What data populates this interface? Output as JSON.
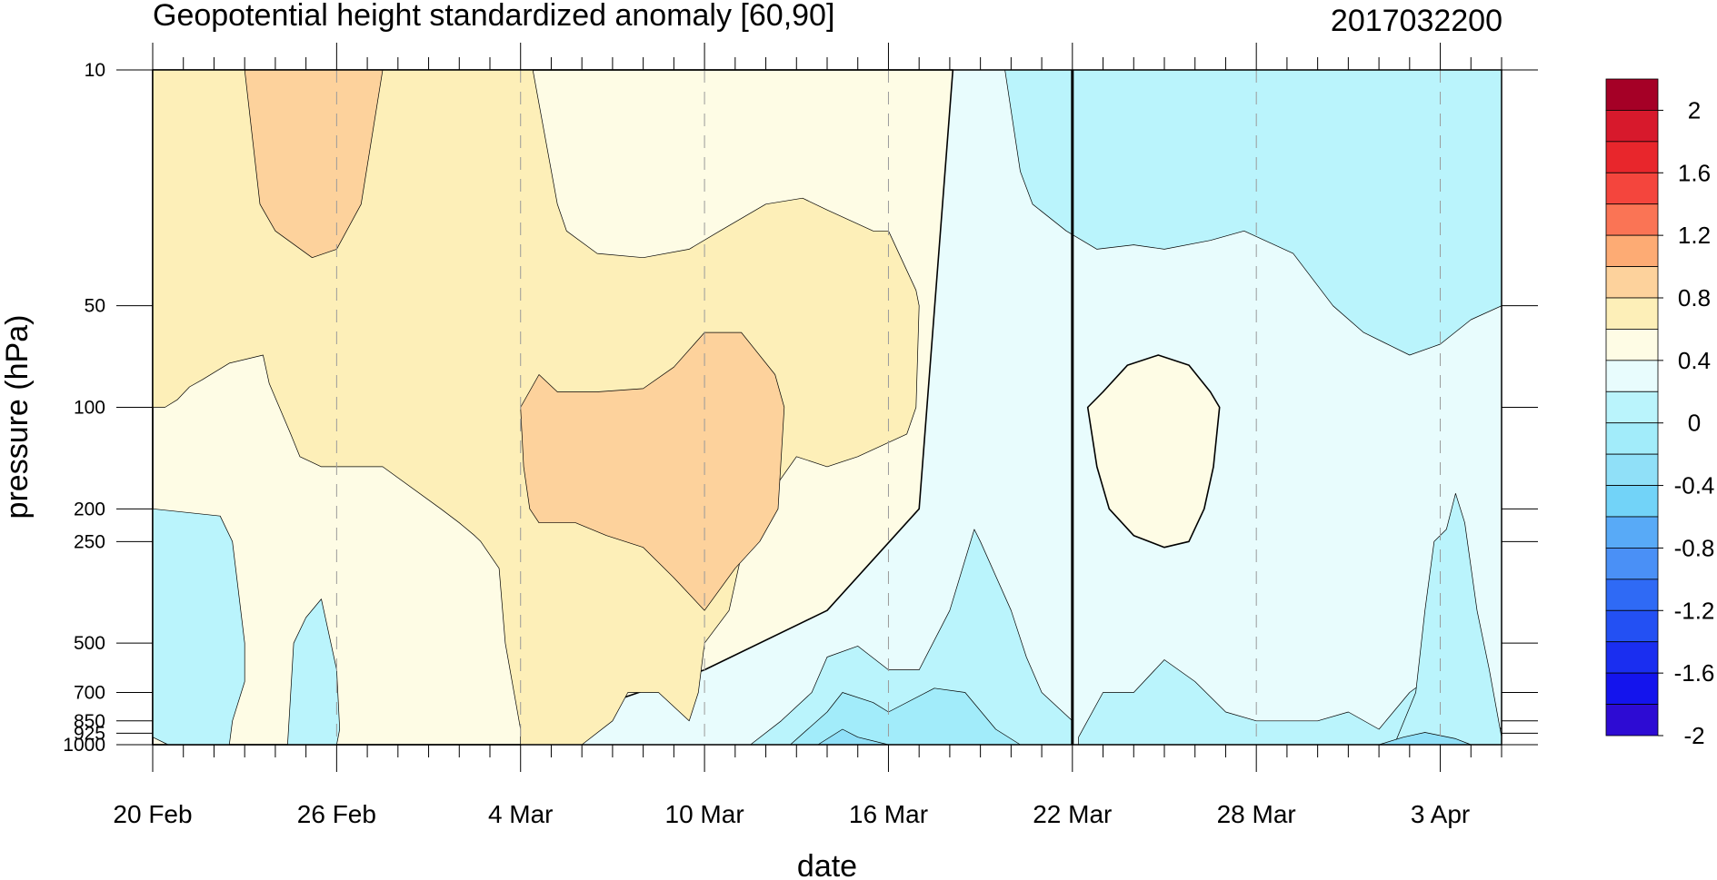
{
  "chart_data": {
    "type": "heatmap",
    "title": "Geopotential height standardized anomaly [60,90]",
    "date_label": "2017032200",
    "xlabel": "date",
    "ylabel": "pressure (hPa)",
    "x_start": "20 Feb",
    "x_end": "4 Apr",
    "x_range_days": [
      0,
      44
    ],
    "x_ticks": [
      {
        "day": 0,
        "label": "20 Feb"
      },
      {
        "day": 6,
        "label": "26 Feb"
      },
      {
        "day": 12,
        "label": "4 Mar"
      },
      {
        "day": 18,
        "label": "10 Mar"
      },
      {
        "day": 24,
        "label": "16 Mar"
      },
      {
        "day": 30,
        "label": "22 Mar"
      },
      {
        "day": 36,
        "label": "28 Mar"
      },
      {
        "day": 42,
        "label": "3 Apr"
      }
    ],
    "y_scale": "log",
    "y_reversed": true,
    "ylim": [
      10,
      1000
    ],
    "y_ticks": [
      {
        "p": 10,
        "label": "10"
      },
      {
        "p": 50,
        "label": "50"
      },
      {
        "p": 100,
        "label": "100"
      },
      {
        "p": 200,
        "label": "200"
      },
      {
        "p": 250,
        "label": "250"
      },
      {
        "p": 500,
        "label": "500"
      },
      {
        "p": 700,
        "label": "700"
      },
      {
        "p": 850,
        "label": "850"
      },
      {
        "p": 925,
        "label": "925"
      },
      {
        "p": 1000,
        "label": "1000"
      }
    ],
    "current_date_marker_day": 30,
    "colorbar": {
      "labels": [
        "2",
        "1.6",
        "1.2",
        "0.8",
        "0.4",
        "0",
        "-0.4",
        "-0.8",
        "-1.2",
        "-1.6",
        "-2"
      ],
      "colors": [
        "#a50026",
        "#d7192c",
        "#e8262c",
        "#f4453d",
        "#fa7455",
        "#fdab74",
        "#fdd29c",
        "#fdefb8",
        "#fefce5",
        "#e8fcfd",
        "#baf4fc",
        "#a2ecfa",
        "#90e0f8",
        "#72d3f8",
        "#58aaf7",
        "#4a90f6",
        "#2f6af5",
        "#2350f3",
        "#1a2ef0",
        "#1414ed",
        "#2d0bd3"
      ]
    },
    "contour_regions": [
      {
        "level": 0.0,
        "color": "#fefce5",
        "points": [
          [
            0,
            10
          ],
          [
            26.1,
            10
          ],
          [
            25.0,
            200
          ],
          [
            22.0,
            400
          ],
          [
            18.0,
            600
          ],
          [
            14.0,
            800
          ],
          [
            12.0,
            1000
          ],
          [
            0,
            1000
          ]
        ]
      },
      {
        "level": 0.2,
        "color": "#fdefb8",
        "points": [
          [
            0,
            10
          ],
          [
            12.4,
            10
          ],
          [
            13.2,
            25
          ],
          [
            13.5,
            30
          ],
          [
            14.5,
            35
          ],
          [
            16.0,
            36
          ],
          [
            17.5,
            34
          ],
          [
            18.5,
            30
          ],
          [
            20.0,
            25
          ],
          [
            21.2,
            24
          ],
          [
            22.0,
            26
          ],
          [
            23.5,
            30
          ],
          [
            24.0,
            30
          ],
          [
            24.9,
            45
          ],
          [
            25.0,
            50
          ],
          [
            24.9,
            100
          ],
          [
            24.6,
            120
          ],
          [
            23.0,
            140
          ],
          [
            22.0,
            150
          ],
          [
            21.0,
            140
          ],
          [
            19.8,
            200
          ],
          [
            19.3,
            250
          ],
          [
            18.8,
            400
          ],
          [
            18.0,
            500
          ],
          [
            17.8,
            700
          ],
          [
            17.5,
            850
          ],
          [
            16.5,
            700
          ],
          [
            15.5,
            700
          ],
          [
            15.0,
            850
          ],
          [
            14.0,
            1000
          ],
          [
            12.0,
            1000
          ],
          [
            12.0,
            900
          ],
          [
            11.5,
            500
          ],
          [
            11.3,
            300
          ],
          [
            10.7,
            250
          ],
          [
            10.5,
            240
          ],
          [
            10.0,
            220
          ],
          [
            9.4,
            200
          ],
          [
            7.5,
            150
          ],
          [
            5.5,
            150
          ],
          [
            4.8,
            140
          ],
          [
            4.5,
            120
          ],
          [
            3.8,
            85
          ],
          [
            3.6,
            70
          ],
          [
            2.5,
            74
          ],
          [
            1.6,
            83
          ],
          [
            1.2,
            87
          ],
          [
            0.8,
            95
          ],
          [
            0.4,
            100
          ],
          [
            0,
            100
          ]
        ]
      },
      {
        "level": 0.4,
        "color": "#fdd29c",
        "points": [
          [
            3.0,
            10
          ],
          [
            7.5,
            10
          ],
          [
            6.8,
            25
          ],
          [
            6.0,
            34
          ],
          [
            5.2,
            36
          ],
          [
            4.0,
            30
          ],
          [
            3.5,
            25
          ]
        ]
      },
      {
        "level": 0.6,
        "color": "#fdd29c",
        "points": [
          [
            12.0,
            100
          ],
          [
            12.6,
            80
          ],
          [
            13.2,
            90
          ],
          [
            14.5,
            90
          ],
          [
            16.0,
            88
          ],
          [
            17.0,
            76
          ],
          [
            18.0,
            60
          ],
          [
            19.2,
            60
          ],
          [
            20.3,
            80
          ],
          [
            20.6,
            100
          ],
          [
            20.4,
            200
          ],
          [
            19.8,
            250
          ],
          [
            19.0,
            300
          ],
          [
            18.0,
            400
          ],
          [
            17.0,
            320
          ],
          [
            16.0,
            260
          ],
          [
            14.8,
            240
          ],
          [
            13.8,
            220
          ],
          [
            12.6,
            220
          ],
          [
            12.3,
            200
          ],
          [
            12.1,
            150
          ]
        ]
      },
      {
        "level": -0.2,
        "color": "#baf4fc",
        "points": [
          [
            27.8,
            10
          ],
          [
            44,
            10
          ],
          [
            44,
            50
          ],
          [
            43.0,
            55
          ],
          [
            42.0,
            65
          ],
          [
            41.0,
            70
          ],
          [
            39.5,
            60
          ],
          [
            38.5,
            50
          ],
          [
            37.2,
            35
          ],
          [
            35.6,
            30
          ],
          [
            34.5,
            32
          ],
          [
            33.0,
            34
          ],
          [
            32.0,
            33
          ],
          [
            30.8,
            34
          ],
          [
            29.8,
            30
          ],
          [
            28.7,
            25
          ],
          [
            28.3,
            20
          ]
        ]
      },
      {
        "level": -0.4,
        "color": "#baf4fc",
        "points": [
          [
            0,
            200
          ],
          [
            2.2,
            210
          ],
          [
            2.6,
            250
          ],
          [
            3.0,
            500
          ],
          [
            3.0,
            650
          ],
          [
            2.6,
            850
          ],
          [
            2.5,
            1000
          ],
          [
            0.5,
            1000
          ],
          [
            0,
            950
          ]
        ]
      },
      {
        "level": -0.6,
        "color": "#baf4fc",
        "points": [
          [
            4.4,
            1000
          ],
          [
            4.6,
            500
          ],
          [
            5.0,
            420
          ],
          [
            5.5,
            370
          ],
          [
            6.0,
            600
          ],
          [
            6.1,
            900
          ],
          [
            6.0,
            1000
          ]
        ]
      },
      {
        "level": -0.8,
        "color": "#baf4fc",
        "points": [
          [
            19.5,
            1000
          ],
          [
            20.5,
            850
          ],
          [
            21.5,
            700
          ],
          [
            22.0,
            550
          ],
          [
            23.0,
            510
          ],
          [
            24.0,
            600
          ],
          [
            25.0,
            600
          ],
          [
            26.0,
            400
          ],
          [
            26.8,
            230
          ],
          [
            27.0,
            250
          ],
          [
            28.0,
            400
          ],
          [
            28.5,
            550
          ],
          [
            29.0,
            700
          ],
          [
            30,
            850
          ],
          [
            30,
            1000
          ]
        ]
      },
      {
        "level": -1.0,
        "color": "#a2ecfa",
        "points": [
          [
            20.8,
            1000
          ],
          [
            22.0,
            800
          ],
          [
            22.5,
            700
          ],
          [
            23.5,
            750
          ],
          [
            24.0,
            800
          ],
          [
            25.5,
            680
          ],
          [
            26.5,
            700
          ],
          [
            27.5,
            900
          ],
          [
            28.3,
            1000
          ]
        ]
      },
      {
        "level": -1.2,
        "color": "#90e0f8",
        "points": [
          [
            21.7,
            1000
          ],
          [
            22.5,
            900
          ],
          [
            23.0,
            950
          ],
          [
            24.0,
            1000
          ]
        ]
      },
      {
        "level": -0.2,
        "color": "#baf4fc",
        "points": [
          [
            30.2,
            950
          ],
          [
            31.0,
            700
          ],
          [
            32.0,
            700
          ],
          [
            33.0,
            560
          ],
          [
            34.0,
            650
          ],
          [
            35.0,
            800
          ],
          [
            36.0,
            850
          ],
          [
            38.0,
            850
          ],
          [
            39.0,
            800
          ],
          [
            40.0,
            900
          ],
          [
            41.0,
            700
          ],
          [
            42.0,
            600
          ],
          [
            43.0,
            750
          ],
          [
            44,
            900
          ],
          [
            44,
            1000
          ],
          [
            30.2,
            1000
          ]
        ]
      },
      {
        "level": -0.4,
        "color": "#baf4fc",
        "points": [
          [
            40.5,
            1000
          ],
          [
            41.2,
            700
          ],
          [
            41.5,
            400
          ],
          [
            41.8,
            250
          ],
          [
            42.2,
            230
          ],
          [
            42.5,
            180
          ],
          [
            42.8,
            220
          ],
          [
            43.2,
            400
          ],
          [
            43.6,
            600
          ],
          [
            44,
            950
          ],
          [
            44,
            1000
          ]
        ]
      },
      {
        "level": -0.6,
        "color": "#90e0f8",
        "points": [
          [
            40.0,
            1000
          ],
          [
            40.8,
            950
          ],
          [
            41.5,
            920
          ],
          [
            42.5,
            960
          ],
          [
            43.0,
            1000
          ]
        ]
      },
      {
        "level": 0.0,
        "color": "#fefce5",
        "points": [
          [
            30.5,
            100
          ],
          [
            31.0,
            90
          ],
          [
            31.8,
            75
          ],
          [
            32.8,
            70
          ],
          [
            33.8,
            75
          ],
          [
            34.5,
            90
          ],
          [
            34.8,
            100
          ],
          [
            34.6,
            150
          ],
          [
            34.3,
            200
          ],
          [
            33.8,
            250
          ],
          [
            33.0,
            260
          ],
          [
            32.0,
            240
          ],
          [
            31.2,
            200
          ],
          [
            30.8,
            150
          ]
        ]
      }
    ]
  }
}
